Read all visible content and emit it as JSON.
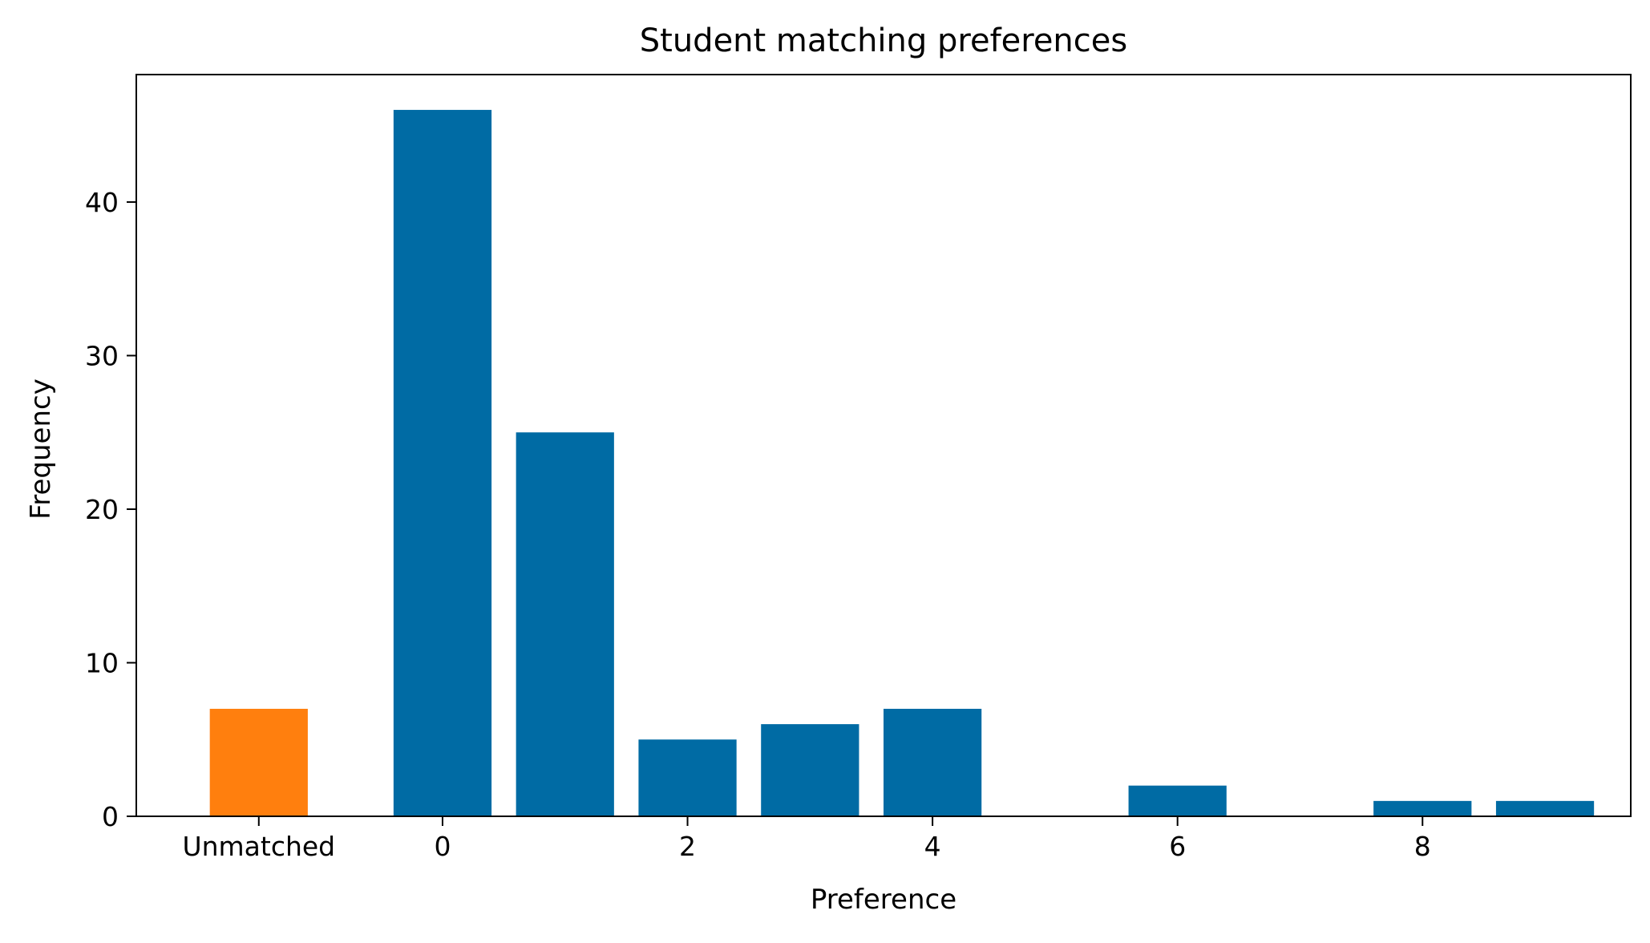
{
  "chart_data": {
    "type": "bar",
    "title": "Student matching preferences",
    "xlabel": "Preference",
    "ylabel": "Frequency",
    "ylim": [
      0,
      48.3
    ],
    "xlim": [
      -2.5,
      9.7
    ],
    "grid": false,
    "legend": "none",
    "x_tick_labels": [
      {
        "x": -1.5,
        "label": "Unmatched"
      },
      {
        "x": 0,
        "label": "0"
      },
      {
        "x": 2,
        "label": "2"
      },
      {
        "x": 4,
        "label": "4"
      },
      {
        "x": 6,
        "label": "6"
      },
      {
        "x": 8,
        "label": "8"
      }
    ],
    "y_tick_labels": [
      {
        "y": 0,
        "label": "0"
      },
      {
        "y": 10,
        "label": "10"
      },
      {
        "y": 20,
        "label": "20"
      },
      {
        "y": 30,
        "label": "30"
      },
      {
        "y": 40,
        "label": "40"
      }
    ],
    "bars": [
      {
        "category": "Unmatched",
        "x": -1.5,
        "value": 7,
        "color": "#ff7f0e"
      },
      {
        "category": "0",
        "x": 0,
        "value": 46,
        "color": "#006ba4"
      },
      {
        "category": "1",
        "x": 1,
        "value": 25,
        "color": "#006ba4"
      },
      {
        "category": "2",
        "x": 2,
        "value": 5,
        "color": "#006ba4"
      },
      {
        "category": "3",
        "x": 3,
        "value": 6,
        "color": "#006ba4"
      },
      {
        "category": "4",
        "x": 4,
        "value": 7,
        "color": "#006ba4"
      },
      {
        "category": "5",
        "x": 5,
        "value": 0,
        "color": "#006ba4"
      },
      {
        "category": "6",
        "x": 6,
        "value": 2,
        "color": "#006ba4"
      },
      {
        "category": "7",
        "x": 7,
        "value": 0,
        "color": "#006ba4"
      },
      {
        "category": "8",
        "x": 8,
        "value": 1,
        "color": "#006ba4"
      },
      {
        "category": "9",
        "x": 9,
        "value": 1,
        "color": "#006ba4"
      }
    ]
  }
}
